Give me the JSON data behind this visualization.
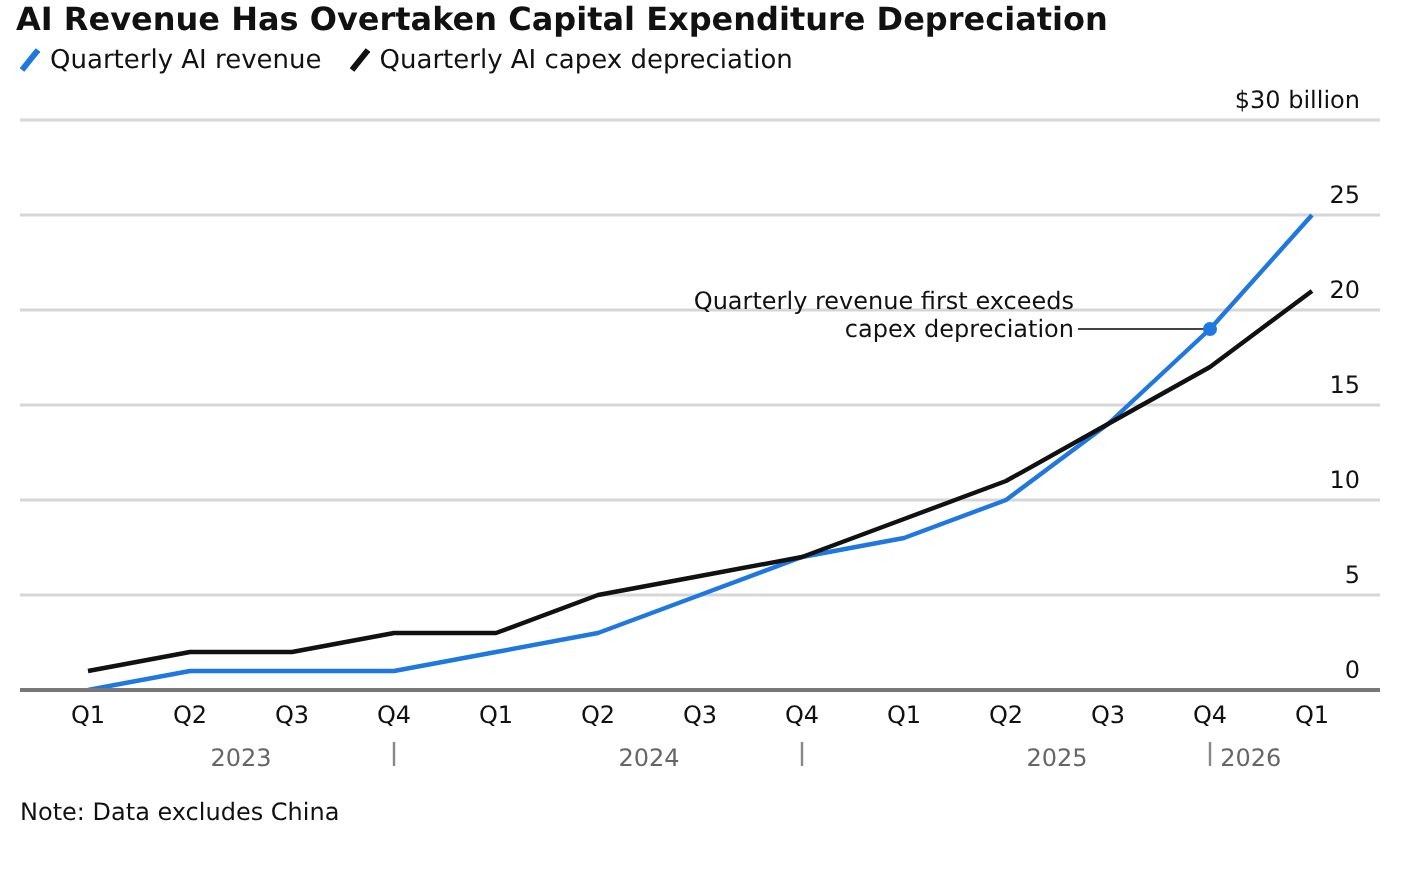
{
  "chart_data": {
    "type": "line",
    "title": "AI Revenue Has Overtaken Capital Expenditure Depreciation",
    "x": [
      "2023-01",
      "2023-04",
      "2023-07",
      "2023-10",
      "2024-01",
      "2024-04",
      "2024-07",
      "2024-10",
      "2025-01",
      "2025-04",
      "2025-07",
      "2025-10",
      "2026-01"
    ],
    "series": [
      {
        "name": "Quarterly AI revenue",
        "color": "#1f77e0",
        "values": [
          0,
          1,
          1,
          1,
          2,
          3,
          5,
          7,
          8,
          10,
          14,
          19,
          25
        ]
      },
      {
        "name": "Quarterly AI capex depreciation",
        "color": "#111111",
        "values": [
          1,
          2,
          2,
          3,
          3,
          5,
          6,
          7,
          9,
          11,
          14,
          17,
          21
        ]
      }
    ],
    "xlim": [
      "2022-11",
      "2026-03"
    ],
    "xticks": [
      {
        "value": "2023-01",
        "label": "Q1"
      },
      {
        "value": "2023-04",
        "label": "Q2"
      },
      {
        "value": "2023-07",
        "label": "Q3"
      },
      {
        "value": "2023-10",
        "label": "Q4"
      },
      {
        "value": "2024-01",
        "label": "Q1"
      },
      {
        "value": "2024-04",
        "label": "Q2"
      },
      {
        "value": "2024-07",
        "label": "Q3"
      },
      {
        "value": "2024-10",
        "label": "Q4"
      },
      {
        "value": "2025-01",
        "label": "Q1"
      },
      {
        "value": "2025-04",
        "label": "Q2"
      },
      {
        "value": "2025-07",
        "label": "Q3"
      },
      {
        "value": "2025-10",
        "label": "Q4"
      },
      {
        "value": "2026-01",
        "label": "Q1"
      }
    ],
    "ylim": [
      0,
      30
    ],
    "yticks": [
      0,
      5,
      10,
      15,
      20,
      25,
      {
        "value": 30,
        "label": "$30 billion"
      }
    ],
    "grid": "y",
    "legend": "top left",
    "marker": "none",
    "line_style": "solid",
    "annotations": [
      "2023",
      "2024",
      "2025",
      "2026",
      {
        "text": "Quarterly revenue first exceeds capex depreciation",
        "x": "2025-10",
        "y": 19
      },
      "Note: Data excludes China"
    ]
  }
}
